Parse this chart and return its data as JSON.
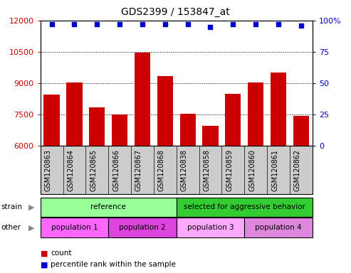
{
  "title": "GDS2399 / 153847_at",
  "samples": [
    "GSM120863",
    "GSM120864",
    "GSM120865",
    "GSM120866",
    "GSM120867",
    "GSM120868",
    "GSM120838",
    "GSM120858",
    "GSM120859",
    "GSM120860",
    "GSM120861",
    "GSM120862"
  ],
  "counts": [
    8450,
    9050,
    7850,
    7500,
    10450,
    9350,
    7550,
    6950,
    8500,
    9050,
    9500,
    7450
  ],
  "percentile_ranks": [
    97,
    97,
    97,
    97,
    97,
    97,
    97,
    95,
    97,
    97,
    97,
    96
  ],
  "ylim_left": [
    6000,
    12000
  ],
  "ylim_right": [
    0,
    100
  ],
  "yticks_left": [
    6000,
    7500,
    9000,
    10500,
    12000
  ],
  "yticks_right": [
    0,
    25,
    50,
    75,
    100
  ],
  "bar_color": "#cc0000",
  "dot_color": "#0000cc",
  "background_color": "#ffffff",
  "plot_bg_color": "#ffffff",
  "xtick_bg_color": "#cccccc",
  "strain_row": [
    {
      "label": "reference",
      "start": 0,
      "end": 6,
      "color": "#99ff99"
    },
    {
      "label": "selected for aggressive behavior",
      "start": 6,
      "end": 12,
      "color": "#33cc33"
    }
  ],
  "other_row": [
    {
      "label": "population 1",
      "start": 0,
      "end": 3,
      "color": "#ff66ff"
    },
    {
      "label": "population 2",
      "start": 3,
      "end": 6,
      "color": "#dd44dd"
    },
    {
      "label": "population 3",
      "start": 6,
      "end": 9,
      "color": "#ffaaff"
    },
    {
      "label": "population 4",
      "start": 9,
      "end": 12,
      "color": "#dd88dd"
    }
  ],
  "tick_label_color_left": "#cc0000",
  "tick_label_color_right": "#0000cc"
}
